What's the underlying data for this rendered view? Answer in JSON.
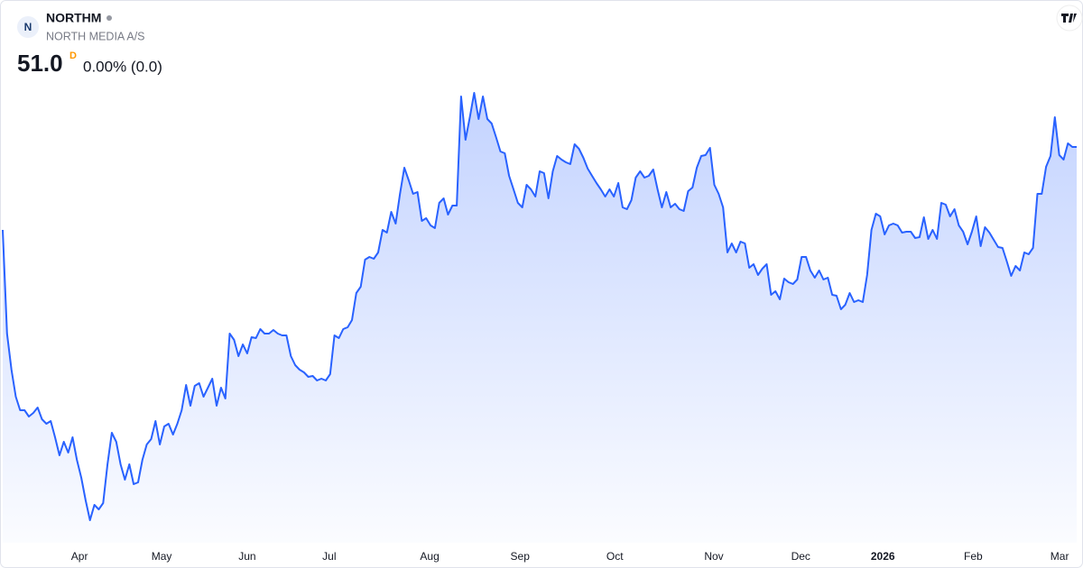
{
  "header": {
    "symbol": "NORTHM",
    "name": "NORTH MEDIA A/S",
    "logo": "N",
    "price": "51.0",
    "interval": "D",
    "change": "0.00% (0.0)"
  },
  "chart_data": {
    "type": "area",
    "color": "#2962ff",
    "ylim": [
      34,
      54
    ],
    "values": [
      47.32,
      42.72,
      41.12,
      39.92,
      39.32,
      39.32,
      39.04,
      39.2,
      39.44,
      38.92,
      38.72,
      38.84,
      38.12,
      37.32,
      37.92,
      37.44,
      38.12,
      37.12,
      36.32,
      35.32,
      34.44,
      35.12,
      34.92,
      35.2,
      36.92,
      38.32,
      37.92,
      36.92,
      36.24,
      36.92,
      36.04,
      36.12,
      37.12,
      37.8,
      38.04,
      38.84,
      37.8,
      38.6,
      38.72,
      38.24,
      38.72,
      39.32,
      40.44,
      39.52,
      40.4,
      40.52,
      39.92,
      40.32,
      40.72,
      39.52,
      40.32,
      39.84,
      42.72,
      42.44,
      41.72,
      42.24,
      41.84,
      42.56,
      42.52,
      42.92,
      42.72,
      42.72,
      42.88,
      42.72,
      42.64,
      42.64,
      41.72,
      41.32,
      41.12,
      41.0,
      40.8,
      40.84,
      40.64,
      40.72,
      40.64,
      40.92,
      42.64,
      42.52,
      42.92,
      43.0,
      43.32,
      44.52,
      44.8,
      46.0,
      46.12,
      46.04,
      46.32,
      47.32,
      47.2,
      48.12,
      47.6,
      48.92,
      50.08,
      49.52,
      48.92,
      49.0,
      47.72,
      47.84,
      47.52,
      47.4,
      48.52,
      48.72,
      48.0,
      48.4,
      48.4,
      53.24,
      51.32,
      52.32,
      53.4,
      52.24,
      53.24,
      52.24,
      52.04,
      51.44,
      50.8,
      50.72,
      49.72,
      49.12,
      48.52,
      48.32,
      49.32,
      49.12,
      48.8,
      49.92,
      49.84,
      48.72,
      49.92,
      50.6,
      50.44,
      50.32,
      50.24,
      51.12,
      50.92,
      50.52,
      50.04,
      49.72,
      49.4,
      49.12,
      48.8,
      49.12,
      48.8,
      49.4,
      48.32,
      48.24,
      48.64,
      49.64,
      49.92,
      49.64,
      49.72,
      50.0,
      49.12,
      48.32,
      49.0,
      48.32,
      48.48,
      48.24,
      48.16,
      49.04,
      49.2,
      50.08,
      50.6,
      50.64,
      50.96,
      49.32,
      48.92,
      48.32,
      46.32,
      46.72,
      46.32,
      46.8,
      46.72,
      45.64,
      45.8,
      45.32,
      45.6,
      45.8,
      44.44,
      44.6,
      44.24,
      45.16,
      45.0,
      44.92,
      45.12,
      46.12,
      46.12,
      45.52,
      45.2,
      45.52,
      45.12,
      45.2,
      44.44,
      44.4,
      43.8,
      44.0,
      44.52,
      44.12,
      44.2,
      44.12,
      45.32,
      47.32,
      48.04,
      47.92,
      47.12,
      47.52,
      47.6,
      47.52,
      47.2,
      47.24,
      47.24,
      46.96,
      47.0,
      47.88,
      46.92,
      47.32,
      46.92,
      48.52,
      48.44,
      47.92,
      48.24,
      47.52,
      47.24,
      46.68,
      47.24,
      47.92,
      46.6,
      47.44,
      47.2,
      46.88,
      46.56,
      46.52,
      45.92,
      45.28,
      45.72,
      45.52,
      46.32,
      46.24,
      46.52,
      48.92,
      48.92,
      50.12,
      50.6,
      52.32,
      50.64,
      50.44,
      51.16,
      51.0,
      51.0
    ],
    "xticks": [
      {
        "value": 17.6,
        "label": "Apr"
      },
      {
        "value": 36.4,
        "label": "May"
      },
      {
        "value": 56,
        "label": "Jun"
      },
      {
        "value": 74.8,
        "label": "Jul"
      },
      {
        "value": 97.8,
        "label": "Aug"
      },
      {
        "value": 118.5,
        "label": "Sep"
      },
      {
        "value": 140.2,
        "label": "Oct"
      },
      {
        "value": 162.9,
        "label": "Nov"
      },
      {
        "value": 182.8,
        "label": "Dec"
      },
      {
        "value": 201.6,
        "label": "2026",
        "bold": true
      },
      {
        "value": 222.3,
        "label": "Feb"
      },
      {
        "value": 242.1,
        "label": "Mar"
      }
    ]
  }
}
